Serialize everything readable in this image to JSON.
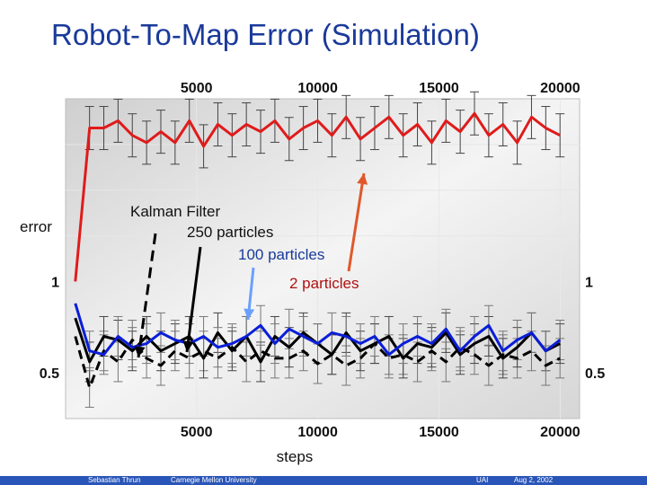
{
  "slide": {
    "title": "Robot-To-Map Error (Simulation)",
    "ylabel": "error",
    "xlabel": "steps"
  },
  "annotations": {
    "kalman": "Kalman Filter",
    "p250": "250 particles",
    "p100": "100 particles",
    "p2": "2 particles"
  },
  "footer": {
    "author": "Sebastian Thrun",
    "university": "Carnegie Mellon University",
    "venue": "UAI",
    "date": "Aug 2, 2002"
  },
  "chart_data": {
    "type": "line",
    "xlabel": "steps",
    "ylabel": "error",
    "xticks": [
      5000,
      10000,
      15000,
      20000
    ],
    "yticks": [
      {
        "value": 1,
        "label": "1"
      },
      {
        "value": 0.5,
        "label": "0.5"
      }
    ],
    "xlim": [
      -400,
      20800
    ],
    "ylim": [
      0.25,
      2.0
    ],
    "grid": true,
    "series": [
      {
        "name": "Kalman Filter",
        "color": "#e01b1b",
        "style": "solid",
        "y": [
          1.0,
          1.84,
          1.84,
          1.88,
          1.8,
          1.76,
          1.82,
          1.76,
          1.88,
          1.74,
          1.86,
          1.8,
          1.86,
          1.82,
          1.88,
          1.78,
          1.84,
          1.88,
          1.8,
          1.9,
          1.78,
          1.84,
          1.9,
          1.8,
          1.86,
          1.76,
          1.88,
          1.82,
          1.92,
          1.8,
          1.86,
          1.76,
          1.9,
          1.84,
          1.8
        ]
      },
      {
        "name": "250 particles",
        "color": "#000000",
        "style": "dashed",
        "y": [
          0.7,
          0.42,
          0.62,
          0.56,
          0.68,
          0.58,
          0.54,
          0.62,
          0.58,
          0.62,
          0.58,
          0.64,
          0.56,
          0.62,
          0.58,
          0.58,
          0.62,
          0.55,
          0.6,
          0.54,
          0.58,
          0.66,
          0.58,
          0.6,
          0.56,
          0.62,
          0.56,
          0.64,
          0.6,
          0.54,
          0.6,
          0.58,
          0.62,
          0.54,
          0.58
        ]
      },
      {
        "name": "100 particles",
        "color": "#000000",
        "style": "solid",
        "y": [
          0.8,
          0.56,
          0.7,
          0.68,
          0.62,
          0.7,
          0.62,
          0.66,
          0.7,
          0.58,
          0.72,
          0.62,
          0.7,
          0.56,
          0.7,
          0.64,
          0.72,
          0.66,
          0.6,
          0.72,
          0.62,
          0.66,
          0.7,
          0.58,
          0.66,
          0.64,
          0.72,
          0.6,
          0.66,
          0.7,
          0.58,
          0.64,
          0.72,
          0.62,
          0.66
        ]
      },
      {
        "name": "2 particles",
        "color": "#0a1ed8",
        "style": "solid",
        "y": [
          0.88,
          0.62,
          0.6,
          0.7,
          0.64,
          0.66,
          0.72,
          0.68,
          0.66,
          0.7,
          0.64,
          0.66,
          0.7,
          0.76,
          0.66,
          0.74,
          0.7,
          0.66,
          0.72,
          0.7,
          0.66,
          0.7,
          0.6,
          0.66,
          0.7,
          0.66,
          0.74,
          0.62,
          0.7,
          0.76,
          0.62,
          0.68,
          0.72,
          0.62,
          0.68
        ]
      }
    ],
    "x_start": 0,
    "x_step": 588
  }
}
